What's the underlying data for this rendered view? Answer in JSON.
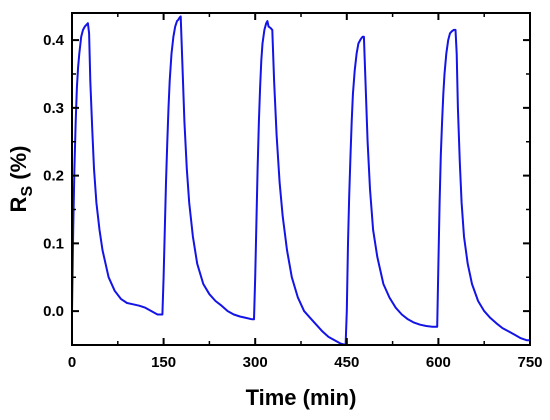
{
  "chart_data": {
    "type": "line",
    "title": "",
    "xlabel": "Time (min)",
    "ylabel": "R",
    "ylabel_subscript": "S",
    "ylabel_suffix": " (%)",
    "xlim": [
      0,
      750
    ],
    "ylim": [
      -0.05,
      0.44
    ],
    "x_ticks": [
      0,
      150,
      300,
      450,
      600,
      750
    ],
    "y_ticks": [
      0.0,
      0.1,
      0.2,
      0.3,
      0.4
    ],
    "y_tick_labels": [
      "0.0",
      "0.1",
      "0.2",
      "0.3",
      "0.4"
    ],
    "grid": false,
    "line_color": "#1414e6",
    "series": [
      {
        "x": [
          0,
          2,
          4,
          6,
          8,
          10,
          12,
          15,
          18,
          21,
          24,
          26,
          28,
          30,
          33,
          36,
          40,
          45,
          50,
          60,
          70,
          80,
          90,
          100,
          110,
          120,
          130,
          140,
          148,
          150,
          152,
          154,
          156,
          158,
          160,
          163,
          166,
          169,
          172,
          174,
          176,
          178,
          181,
          184,
          188,
          192,
          198,
          205,
          215,
          225,
          235,
          245,
          255,
          265,
          275,
          285,
          295,
          298,
          300,
          302,
          304,
          306,
          308,
          310,
          312,
          315,
          318,
          320,
          322,
          325,
          328,
          331,
          335,
          340,
          345,
          352,
          360,
          370,
          380,
          390,
          400,
          410,
          420,
          430,
          440,
          448,
          450,
          452,
          454,
          456,
          458,
          460,
          463,
          466,
          469,
          472,
          474,
          476,
          478,
          481,
          484,
          488,
          493,
          500,
          510,
          520,
          530,
          540,
          550,
          560,
          570,
          580,
          590,
          598,
          600,
          602,
          604,
          606,
          608,
          610,
          613,
          616,
          619,
          622,
          625,
          628,
          630,
          632,
          635,
          638,
          642,
          648,
          655,
          665,
          675,
          685,
          695,
          705,
          715,
          725,
          735,
          745,
          750
        ],
        "y": [
          0.0,
          0.12,
          0.21,
          0.28,
          0.33,
          0.36,
          0.38,
          0.405,
          0.415,
          0.42,
          0.423,
          0.425,
          0.41,
          0.34,
          0.27,
          0.21,
          0.16,
          0.12,
          0.09,
          0.05,
          0.03,
          0.018,
          0.012,
          0.01,
          0.008,
          0.005,
          0.0,
          -0.005,
          -0.005,
          0.05,
          0.12,
          0.19,
          0.25,
          0.3,
          0.34,
          0.38,
          0.405,
          0.42,
          0.428,
          0.43,
          0.433,
          0.435,
          0.36,
          0.28,
          0.21,
          0.16,
          0.11,
          0.07,
          0.04,
          0.025,
          0.015,
          0.008,
          0.0,
          -0.005,
          -0.008,
          -0.01,
          -0.012,
          -0.012,
          0.05,
          0.13,
          0.21,
          0.28,
          0.33,
          0.37,
          0.395,
          0.415,
          0.425,
          0.428,
          0.42,
          0.418,
          0.415,
          0.34,
          0.26,
          0.19,
          0.14,
          0.09,
          0.05,
          0.02,
          0.0,
          -0.01,
          -0.02,
          -0.03,
          -0.038,
          -0.043,
          -0.048,
          -0.05,
          0.0,
          0.1,
          0.17,
          0.23,
          0.28,
          0.32,
          0.355,
          0.38,
          0.395,
          0.4,
          0.403,
          0.405,
          0.405,
          0.33,
          0.25,
          0.18,
          0.12,
          0.08,
          0.04,
          0.02,
          0.005,
          -0.005,
          -0.012,
          -0.017,
          -0.02,
          -0.022,
          -0.023,
          -0.023,
          0.07,
          0.16,
          0.23,
          0.28,
          0.32,
          0.35,
          0.38,
          0.4,
          0.41,
          0.413,
          0.415,
          0.415,
          0.38,
          0.3,
          0.22,
          0.16,
          0.11,
          0.07,
          0.04,
          0.015,
          0.0,
          -0.01,
          -0.018,
          -0.025,
          -0.03,
          -0.035,
          -0.04,
          -0.043,
          -0.043
        ]
      }
    ]
  }
}
